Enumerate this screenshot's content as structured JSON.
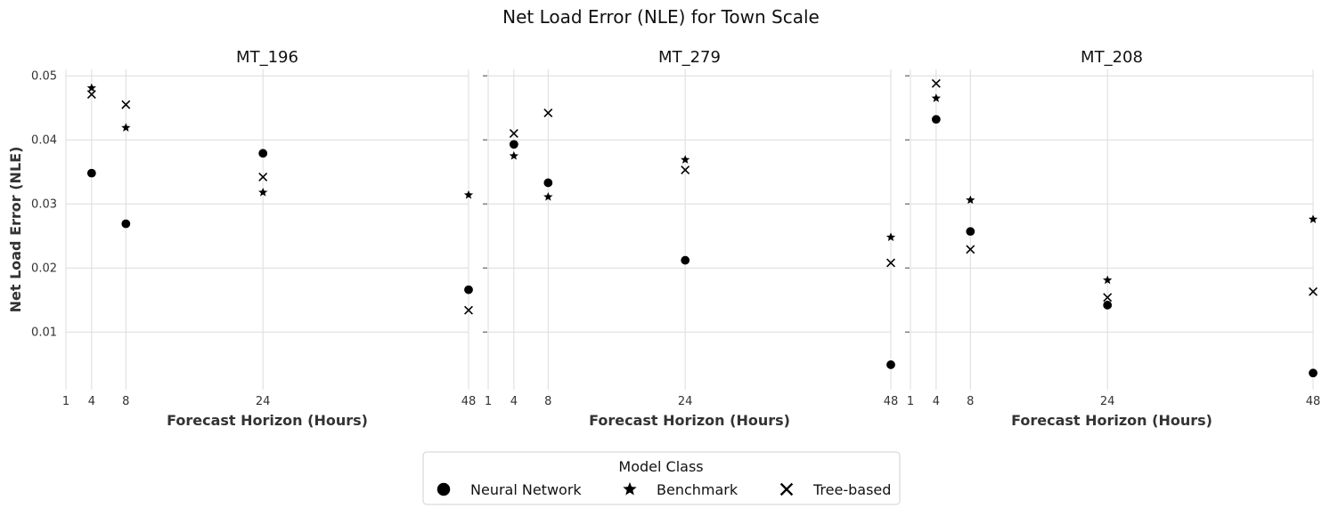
{
  "chart_data": {
    "type": "scatter",
    "title": "Net Load Error (NLE) for Town Scale",
    "ylabel": "Net Load Error (NLE)",
    "xlabel": "Forecast Horizon (Hours)",
    "x_ticks": [
      1,
      4,
      8,
      24,
      48
    ],
    "y_ticks": [
      0.01,
      0.02,
      0.03,
      0.04,
      0.05
    ],
    "xlim": [
      1,
      48
    ],
    "ylim": [
      0.001,
      0.051
    ],
    "grid": true,
    "legend": {
      "title": "Model Class",
      "placement": "bottom-center",
      "entries": [
        {
          "name": "Neural Network",
          "marker": "circle"
        },
        {
          "name": "Benchmark",
          "marker": "star"
        },
        {
          "name": "Tree-based",
          "marker": "x"
        }
      ]
    },
    "panels": [
      {
        "title": "MT_196",
        "series": [
          {
            "name": "Neural Network",
            "marker": "circle",
            "points": [
              [
                4,
                0.0348
              ],
              [
                8,
                0.0269
              ],
              [
                24,
                0.0379
              ],
              [
                48,
                0.0166
              ]
            ]
          },
          {
            "name": "Benchmark",
            "marker": "star",
            "points": [
              [
                4,
                0.0481
              ],
              [
                8,
                0.0419
              ],
              [
                24,
                0.0318
              ],
              [
                48,
                0.0314
              ]
            ]
          },
          {
            "name": "Tree-based",
            "marker": "x",
            "points": [
              [
                4,
                0.0471
              ],
              [
                8,
                0.0455
              ],
              [
                24,
                0.0342
              ],
              [
                48,
                0.0134
              ]
            ]
          }
        ]
      },
      {
        "title": "MT_279",
        "series": [
          {
            "name": "Neural Network",
            "marker": "circle",
            "points": [
              [
                4,
                0.0393
              ],
              [
                8,
                0.0333
              ],
              [
                24,
                0.0212
              ],
              [
                48,
                0.0049
              ]
            ]
          },
          {
            "name": "Benchmark",
            "marker": "star",
            "points": [
              [
                4,
                0.0375
              ],
              [
                8,
                0.0311
              ],
              [
                24,
                0.0369
              ],
              [
                48,
                0.0248
              ]
            ]
          },
          {
            "name": "Tree-based",
            "marker": "x",
            "points": [
              [
                4,
                0.041
              ],
              [
                8,
                0.0442
              ],
              [
                24,
                0.0353
              ],
              [
                48,
                0.0208
              ]
            ]
          }
        ]
      },
      {
        "title": "MT_208",
        "series": [
          {
            "name": "Neural Network",
            "marker": "circle",
            "points": [
              [
                4,
                0.0432
              ],
              [
                8,
                0.0257
              ],
              [
                24,
                0.0142
              ],
              [
                48,
                0.0036
              ]
            ]
          },
          {
            "name": "Benchmark",
            "marker": "star",
            "points": [
              [
                4,
                0.0465
              ],
              [
                8,
                0.0306
              ],
              [
                24,
                0.0181
              ],
              [
                48,
                0.0276
              ]
            ]
          },
          {
            "name": "Tree-based",
            "marker": "x",
            "points": [
              [
                4,
                0.0488
              ],
              [
                8,
                0.0229
              ],
              [
                24,
                0.0154
              ],
              [
                48,
                0.0163
              ]
            ]
          }
        ]
      }
    ]
  }
}
